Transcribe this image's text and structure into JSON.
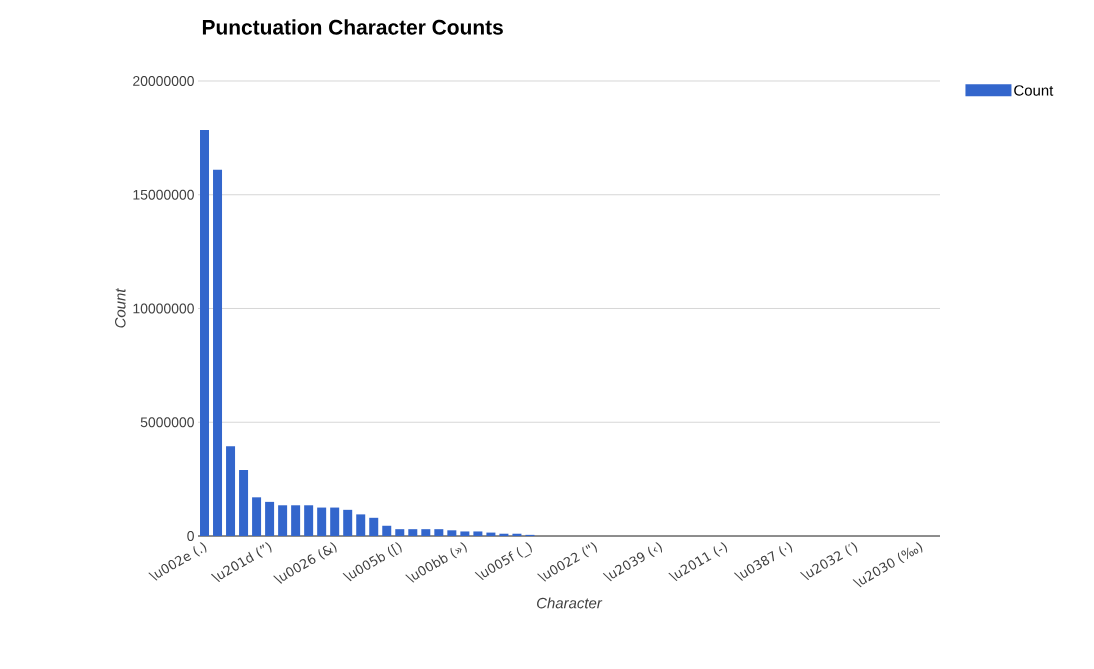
{
  "chart_data": {
    "type": "bar",
    "title": "Punctuation Character Counts",
    "xlabel": "Character",
    "ylabel": "Count",
    "categories": [
      "\\u002e (.)",
      null,
      null,
      null,
      null,
      "\\u201d (”)",
      null,
      null,
      null,
      null,
      "\\u0026 (&)",
      null,
      null,
      null,
      null,
      "\\u005b ([)",
      null,
      null,
      null,
      null,
      "\\u00bb (»)",
      null,
      null,
      null,
      null,
      "\\u005f (_)",
      null,
      null,
      null,
      null,
      "\\u0022 (\")",
      null,
      null,
      null,
      null,
      "\\u2039 (‹)",
      null,
      null,
      null,
      null,
      "\\u2011 (‑)",
      null,
      null,
      null,
      null,
      "\\u0387 (·)",
      null,
      null,
      null,
      null,
      "\\u2032 (′)",
      null,
      null,
      null,
      null,
      "\\u2030 (‰)",
      null
    ],
    "series": [
      {
        "name": "Count",
        "color": "#3366cc",
        "values": [
          17850000,
          16100000,
          3950000,
          2900000,
          1700000,
          1500000,
          1350000,
          1350000,
          1350000,
          1250000,
          1250000,
          1150000,
          950000,
          800000,
          450000,
          300000,
          300000,
          300000,
          300000,
          250000,
          200000,
          200000,
          150000,
          100000,
          100000,
          50000,
          0,
          0,
          0,
          0,
          0,
          0,
          0,
          0,
          0,
          0,
          0,
          0,
          0,
          0,
          0,
          0,
          0,
          0,
          0,
          0,
          0,
          0,
          0,
          0,
          0,
          0,
          0,
          0,
          0,
          0,
          0
        ]
      }
    ],
    "ylim": [
      0,
      20000000
    ],
    "yticks": [
      0,
      5000000,
      10000000,
      15000000,
      20000000
    ],
    "grid": "y",
    "legend": "top right"
  }
}
